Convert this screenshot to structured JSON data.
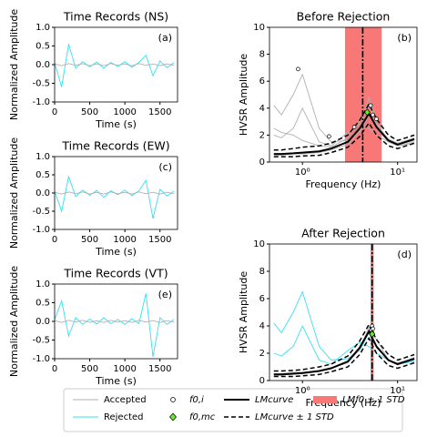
{
  "chart_data": [
    {
      "type": "line",
      "title": "Time Records (NS)",
      "panel_label": "(a)",
      "xlabel": "Time (s)",
      "ylabel": "Normalized Amplitude",
      "x": [
        0,
        100,
        200,
        300,
        400,
        500,
        600,
        700,
        800,
        900,
        1000,
        1100,
        1200,
        1300,
        1400,
        1500,
        1600,
        1700
      ],
      "xlim": [
        0,
        1750
      ],
      "xticks": [
        0,
        500,
        1000,
        1500
      ],
      "ylim": [
        -1,
        1
      ],
      "yticks": [
        {
          "value": -1,
          "label": "-1.0"
        },
        -0.5,
        {
          "value": 0,
          "label": "0.0"
        },
        0.5,
        {
          "value": 1,
          "label": "1.0"
        }
      ],
      "series": [
        {
          "name": "Rejected",
          "values": [
            0.05,
            -0.6,
            0.55,
            -0.1,
            0.08,
            -0.06,
            0.07,
            -0.1,
            0.06,
            -0.05,
            0.08,
            -0.07,
            0.06,
            0.25,
            -0.3,
            0.1,
            -0.08,
            0.05
          ]
        },
        {
          "name": "Accepted",
          "values": [
            0.02,
            -0.03,
            0.03,
            -0.02,
            0.03,
            -0.03,
            0.02,
            -0.03,
            0.03,
            -0.02,
            0.02,
            -0.03,
            0.03,
            -0.02,
            0.02,
            -0.03,
            0.02,
            -0.02
          ]
        }
      ]
    },
    {
      "type": "hvsr",
      "title": "Before Rejection",
      "panel_label": "(b)",
      "xlabel": "Frequency (Hz)",
      "ylabel": "HVSR Amplitude",
      "xscale": "log",
      "x": [
        0.5,
        0.6,
        0.8,
        1,
        1.5,
        2,
        3,
        4,
        5,
        6,
        8,
        10,
        15
      ],
      "xlim": [
        0.45,
        16
      ],
      "xticks": [
        {
          "value": 1,
          "label": "10⁰"
        },
        {
          "value": 10,
          "label": "10¹"
        }
      ],
      "ylim": [
        0,
        10
      ],
      "yticks": [
        0,
        2,
        4,
        6,
        8,
        10
      ],
      "band": {
        "name": "LMf0 ± 1 STD",
        "range": [
          2.8,
          6.8
        ],
        "center": 4.3
      },
      "series": [
        {
          "name": "Accepted",
          "values": [
            4.2,
            3.5,
            5,
            6.5,
            2.5,
            1.5,
            1.6,
            2.2,
            3.5,
            2.5,
            1.5,
            1.2,
            1.5
          ]
        },
        {
          "name": "Accepted",
          "values": [
            2.5,
            2.2,
            2.0,
            1.6,
            1.2,
            1.1,
            1.8,
            3.0,
            4.2,
            2.8,
            1.7,
            1.4,
            1.8
          ]
        },
        {
          "name": "Accepted",
          "values": [
            0.5,
            0.5,
            0.6,
            0.6,
            0.7,
            0.9,
            1.3,
            2.3,
            4.8,
            3.0,
            1.5,
            1.3,
            1.6
          ]
        },
        {
          "name": "Accepted",
          "values": [
            2.0,
            1.8,
            2.5,
            4.0,
            1.5,
            1.2,
            2.2,
            2.8,
            2.5,
            2.0,
            1.5,
            1.2,
            1.4
          ]
        },
        {
          "name": "LMcurve ± 1 STD",
          "values": [
            0.9,
            0.9,
            1.0,
            1.1,
            1.2,
            1.4,
            2.0,
            3.1,
            4.3,
            3.2,
            2.0,
            1.6,
            2.0
          ]
        },
        {
          "name": "LMcurve ± 1 STD",
          "values": [
            0.4,
            0.4,
            0.4,
            0.45,
            0.5,
            0.7,
            1.1,
            1.9,
            2.9,
            2.0,
            1.2,
            1.0,
            1.4
          ]
        },
        {
          "name": "LMcurve",
          "values": [
            0.6,
            0.6,
            0.65,
            0.7,
            0.8,
            1.0,
            1.5,
            2.5,
            3.6,
            2.6,
            1.6,
            1.3,
            1.7
          ]
        }
      ],
      "f0_points": {
        "name": "f0,i",
        "x": [
          0.9,
          1.9,
          3.5,
          4.8,
          5.2,
          5.5,
          6.0
        ],
        "values": [
          6.9,
          1.9,
          2.6,
          3.7,
          4.2,
          3.5,
          3.2
        ]
      },
      "f0_mc": {
        "name": "f0,mc",
        "x": 4.8,
        "value": 3.7
      }
    },
    {
      "type": "line",
      "title": "Time Records (EW)",
      "panel_label": "(c)",
      "xlabel": "Time (s)",
      "ylabel": "Normalized Amplitude",
      "x": [
        0,
        100,
        200,
        300,
        400,
        500,
        600,
        700,
        800,
        900,
        1000,
        1100,
        1200,
        1300,
        1400,
        1500,
        1600,
        1700
      ],
      "xlim": [
        0,
        1750
      ],
      "xticks": [
        0,
        500,
        1000,
        1500
      ],
      "ylim": [
        -1,
        1
      ],
      "yticks": [
        {
          "value": -1,
          "label": "-1.0"
        },
        -0.5,
        {
          "value": 0,
          "label": "0.0"
        },
        0.5,
        {
          "value": 1,
          "label": "1.0"
        }
      ],
      "series": [
        {
          "name": "Rejected",
          "values": [
            0.05,
            -0.5,
            0.45,
            -0.1,
            0.08,
            -0.06,
            0.07,
            -0.12,
            0.06,
            -0.05,
            0.08,
            -0.07,
            0.06,
            0.35,
            -0.7,
            0.1,
            -0.08,
            0.05
          ]
        },
        {
          "name": "Accepted",
          "values": [
            0.02,
            -0.03,
            0.03,
            -0.02,
            0.03,
            -0.03,
            0.02,
            -0.03,
            0.03,
            -0.02,
            0.02,
            -0.03,
            0.03,
            -0.02,
            0.02,
            -0.03,
            0.02,
            -0.02
          ]
        }
      ]
    },
    {
      "type": "hvsr",
      "title": "After Rejection",
      "panel_label": "(d)",
      "xlabel": "Frequency (Hz)",
      "ylabel": "HVSR Amplitude",
      "xscale": "log",
      "x": [
        0.5,
        0.6,
        0.8,
        1,
        1.5,
        2,
        3,
        4,
        5,
        6,
        8,
        10,
        15
      ],
      "xlim": [
        0.45,
        16
      ],
      "xticks": [
        {
          "value": 1,
          "label": "10⁰"
        },
        {
          "value": 10,
          "label": "10¹"
        }
      ],
      "ylim": [
        0,
        10
      ],
      "yticks": [
        0,
        2,
        4,
        6,
        8,
        10
      ],
      "band": {
        "name": "LMf0 ± 1 STD",
        "range": [
          5.2,
          5.6
        ],
        "center": 5.4
      },
      "series": [
        {
          "name": "Rejected",
          "values": [
            4.2,
            3.5,
            5,
            6.5,
            2.5,
            1.5,
            1.6,
            2.2,
            3.5,
            2.5,
            1.5,
            1.2,
            1.5
          ]
        },
        {
          "name": "Rejected",
          "values": [
            2.0,
            1.8,
            2.5,
            4.0,
            1.5,
            1.2,
            2.2,
            2.8,
            2.5,
            2.0,
            1.5,
            1.2,
            1.4
          ]
        },
        {
          "name": "Accepted",
          "values": [
            0.5,
            0.5,
            0.6,
            0.6,
            0.7,
            0.9,
            1.3,
            2.3,
            3.9,
            3.0,
            1.5,
            1.3,
            1.6
          ]
        },
        {
          "name": "Accepted",
          "values": [
            0.4,
            0.4,
            0.5,
            0.5,
            0.7,
            0.9,
            1.4,
            2.5,
            3.7,
            2.4,
            1.5,
            1.2,
            1.7
          ]
        },
        {
          "name": "LMcurve ± 1 STD",
          "values": [
            0.7,
            0.7,
            0.75,
            0.8,
            1.0,
            1.2,
            1.8,
            2.9,
            4.1,
            3.0,
            1.9,
            1.5,
            1.9
          ]
        },
        {
          "name": "LMcurve ± 1 STD",
          "values": [
            0.3,
            0.3,
            0.3,
            0.35,
            0.45,
            0.65,
            1.0,
            1.9,
            3.1,
            2.0,
            1.1,
            0.9,
            1.3
          ]
        },
        {
          "name": "LMcurve",
          "values": [
            0.45,
            0.45,
            0.5,
            0.55,
            0.7,
            0.9,
            1.4,
            2.4,
            3.6,
            2.5,
            1.5,
            1.2,
            1.6
          ]
        }
      ],
      "f0_points": {
        "name": "f0,i",
        "x": [
          5.3,
          5.4,
          5.5,
          5.4
        ],
        "values": [
          3.7,
          4.0,
          3.8,
          3.5
        ]
      },
      "f0_mc": {
        "name": "f0,mc",
        "x": 5.4,
        "value": 3.4
      }
    },
    {
      "type": "line",
      "title": "Time Records (VT)",
      "panel_label": "(e)",
      "xlabel": "Time (s)",
      "ylabel": "Normalized Amplitude",
      "x": [
        0,
        100,
        200,
        300,
        400,
        500,
        600,
        700,
        800,
        900,
        1000,
        1100,
        1200,
        1300,
        1400,
        1500,
        1600,
        1700
      ],
      "xlim": [
        0,
        1750
      ],
      "xticks": [
        0,
        500,
        1000,
        1500
      ],
      "ylim": [
        -1,
        1
      ],
      "yticks": [
        {
          "value": -1,
          "label": "-1.0"
        },
        -0.5,
        {
          "value": 0,
          "label": "0.0"
        },
        0.5,
        {
          "value": 1,
          "label": "1.0"
        }
      ],
      "series": [
        {
          "name": "Rejected",
          "values": [
            0.05,
            0.55,
            -0.4,
            0.1,
            -0.08,
            0.06,
            -0.07,
            0.1,
            -0.06,
            0.05,
            -0.08,
            0.07,
            -0.06,
            0.75,
            -0.95,
            0.1,
            -0.08,
            0.05
          ]
        },
        {
          "name": "Accepted",
          "values": [
            0.02,
            -0.03,
            0.03,
            -0.02,
            0.03,
            -0.03,
            0.02,
            -0.03,
            0.03,
            -0.02,
            0.02,
            -0.03,
            0.03,
            -0.02,
            0.02,
            -0.03,
            0.02,
            -0.02
          ]
        }
      ]
    }
  ],
  "legend": [
    {
      "name": "Accepted",
      "style": "line",
      "color": "#b0b0b0"
    },
    {
      "name": "Rejected",
      "style": "line",
      "color": "#33e0f0"
    },
    {
      "name": "f0,i",
      "style": "circle",
      "color": "#ffffff"
    },
    {
      "name": "f0,mc",
      "style": "diamond",
      "color": "#66ee22"
    },
    {
      "name": "LMcurve",
      "style": "thick",
      "color": "#000000"
    },
    {
      "name": "LMcurve ± 1 STD",
      "style": "dashed",
      "color": "#000000"
    },
    {
      "name": "LMf0 ± 1 STD",
      "style": "patch",
      "color": "#f87878"
    }
  ]
}
